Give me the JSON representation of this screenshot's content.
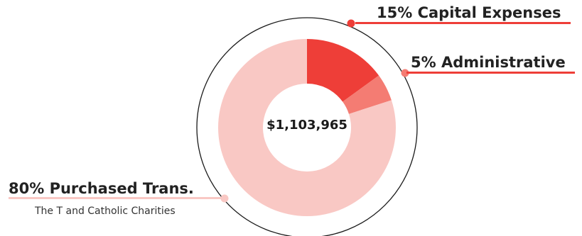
{
  "chart_data": {
    "type": "pie",
    "subtype": "donut",
    "title": "",
    "center_label": "$1,103,965",
    "slices": [
      {
        "label": "Capital Expenses",
        "percent": 15,
        "percent_label": "15% Capital Expenses",
        "color": "#ee3e38"
      },
      {
        "label": "Administrative",
        "percent": 5,
        "percent_label": "5% Administrative",
        "color": "#f47c73"
      },
      {
        "label": "Purchased Trans.",
        "percent": 80,
        "percent_label": "80% Purchased Trans.",
        "note": "The T and Catholic Charities",
        "color": "#f9c8c4"
      }
    ],
    "legend": "none"
  },
  "colors": {
    "outer_ring": "#1a1a1a",
    "dot_capital": "#ee3e38",
    "dot_admin": "#f47c73",
    "dot_purchased": "#f9c8c4",
    "underline_capital": "#ee3e38",
    "underline_admin": "#ee3e38",
    "underline_purchased": "#f9c8c4"
  }
}
